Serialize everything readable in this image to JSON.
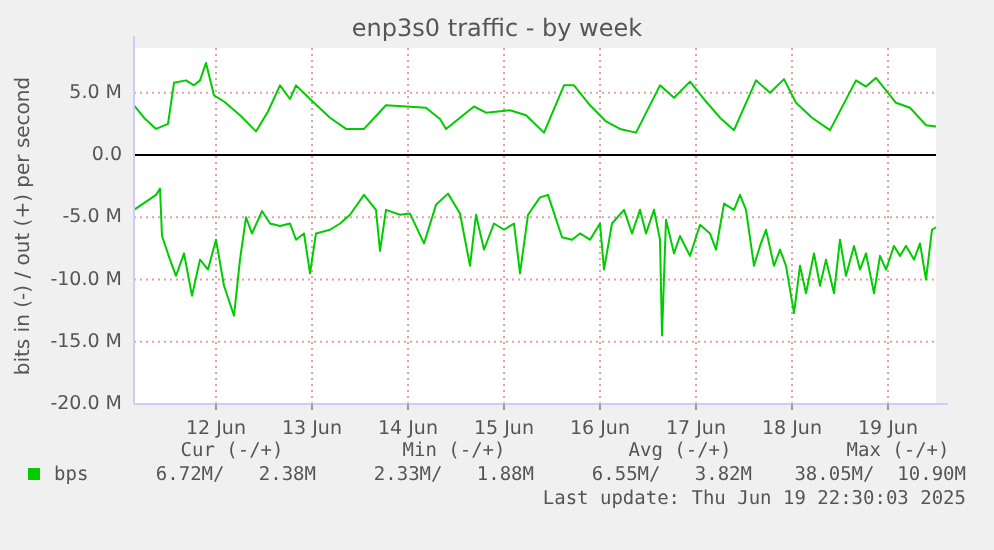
{
  "chart_data": {
    "type": "line",
    "title": "enp3s0 traffic - by week",
    "ylabel": "bits in (-) / out (+) per second",
    "xlim": [
      "2025-06-11T15:30",
      "2025-06-20T00:00"
    ],
    "xticks": [
      {
        "value": "2025-06-12T12:00",
        "label": "12 Jun"
      },
      {
        "value": "2025-06-13T12:00",
        "label": "13 Jun"
      },
      {
        "value": "2025-06-14T12:00",
        "label": "14 Jun"
      },
      {
        "value": "2025-06-15T12:00",
        "label": "15 Jun"
      },
      {
        "value": "2025-06-16T12:00",
        "label": "16 Jun"
      },
      {
        "value": "2025-06-17T12:00",
        "label": "17 Jun"
      },
      {
        "value": "2025-06-18T12:00",
        "label": "18 Jun"
      },
      {
        "value": "2025-06-19T12:00",
        "label": "19 Jun"
      }
    ],
    "ylim": [
      -20,
      8.6
    ],
    "yticks": [
      {
        "value": -20,
        "label": "-20.0 M"
      },
      {
        "value": -15,
        "label": "-15.0 M"
      },
      {
        "value": -10,
        "label": "-10.0 M"
      },
      {
        "value": -5,
        "label": "-5.0 M"
      },
      {
        "value": 0,
        "label": "0.0"
      },
      {
        "value": 5,
        "label": "5.0 M"
      }
    ],
    "grid": true,
    "legend": "bottom",
    "ref_lines": [
      {
        "axis": "y",
        "value": 0,
        "color": "#000000"
      }
    ],
    "annotations": [
      "Cur (-/+)",
      "Min (-/+)",
      "Avg (-/+)",
      "Max (-/+)",
      "6.72M/   2.38M",
      "2.33M/   1.88M",
      "6.55M/   3.82M",
      "38.05M/  10.90M",
      "Last update: Thu Jun 19 22:30:03 2025"
    ],
    "series": [
      {
        "name": "bps",
        "color": "#00cc00",
        "x": [
          "2025-06-11T15:30",
          "2025-06-11T18:00",
          "2025-06-11T21:00",
          "2025-06-12T00:00",
          "2025-06-12T01:30",
          "2025-06-12T04:30",
          "2025-06-12T06:30",
          "2025-06-12T08:00",
          "2025-06-12T09:30",
          "2025-06-12T11:30",
          "2025-06-12T14:00",
          "2025-06-12T18:00",
          "2025-06-12T22:00",
          "2025-06-13T01:00",
          "2025-06-13T04:00",
          "2025-06-13T06:30",
          "2025-06-13T08:00",
          "2025-06-13T11:30",
          "2025-06-13T16:30",
          "2025-06-13T20:30",
          "2025-06-14T01:00",
          "2025-06-14T06:30",
          "2025-06-14T11:30",
          "2025-06-14T16:30",
          "2025-06-14T20:00",
          "2025-06-14T21:30",
          "2025-06-15T04:30",
          "2025-06-15T07:30",
          "2025-06-15T13:30",
          "2025-06-15T17:30",
          "2025-06-15T22:00",
          "2025-06-16T03:00",
          "2025-06-16T05:30",
          "2025-06-16T09:30",
          "2025-06-16T13:30",
          "2025-06-16T17:00",
          "2025-06-16T21:00",
          "2025-06-17T03:00",
          "2025-06-17T06:30",
          "2025-06-17T10:30",
          "2025-06-17T14:30",
          "2025-06-17T18:00",
          "2025-06-17T21:30",
          "2025-06-18T03:00",
          "2025-06-18T06:30",
          "2025-06-18T10:00",
          "2025-06-18T13:00",
          "2025-06-18T17:00",
          "2025-06-18T21:30",
          "2025-06-19T04:00",
          "2025-06-19T06:30",
          "2025-06-19T09:00",
          "2025-06-19T14:00",
          "2025-06-19T17:30",
          "2025-06-19T21:30",
          "2025-06-20T00:00"
        ],
        "values": [
          4.0,
          3.0,
          2.1,
          2.5,
          5.8,
          6.0,
          5.6,
          6.0,
          7.4,
          4.8,
          4.3,
          3.2,
          1.9,
          3.5,
          5.6,
          4.5,
          5.6,
          4.5,
          3.0,
          2.1,
          2.1,
          4.0,
          3.9,
          3.8,
          2.9,
          2.1,
          3.9,
          3.4,
          3.6,
          3.2,
          1.8,
          5.6,
          5.6,
          4.0,
          2.7,
          2.1,
          1.8,
          5.6,
          4.6,
          5.9,
          4.3,
          3.0,
          2.0,
          6.0,
          5.0,
          6.1,
          4.2,
          3.0,
          2.0,
          6.0,
          5.5,
          6.2,
          4.2,
          3.8,
          2.4,
          2.3
        ]
      },
      {
        "color": "#00cc00",
        "x": [
          "2025-06-11T15:30",
          "2025-06-11T21:00",
          "2025-06-11T22:00",
          "2025-06-11T22:30",
          "2025-06-12T00:30",
          "2025-06-12T02:00",
          "2025-06-12T04:00",
          "2025-06-12T06:00",
          "2025-06-12T08:00",
          "2025-06-12T10:00",
          "2025-06-12T12:00",
          "2025-06-12T14:00",
          "2025-06-12T16:30",
          "2025-06-12T18:00",
          "2025-06-12T19:30",
          "2025-06-12T21:00",
          "2025-06-12T23:30",
          "2025-06-13T01:30",
          "2025-06-13T04:00",
          "2025-06-13T06:30",
          "2025-06-13T08:00",
          "2025-06-13T10:00",
          "2025-06-13T11:30",
          "2025-06-13T13:00",
          "2025-06-13T16:30",
          "2025-06-13T19:00",
          "2025-06-13T21:30",
          "2025-06-14T01:00",
          "2025-06-14T04:00",
          "2025-06-14T05:00",
          "2025-06-14T06:30",
          "2025-06-14T10:00",
          "2025-06-14T12:30",
          "2025-06-14T16:00",
          "2025-06-14T19:00",
          "2025-06-14T22:00",
          "2025-06-15T01:00",
          "2025-06-15T03:30",
          "2025-06-15T05:00",
          "2025-06-15T07:00",
          "2025-06-15T09:30",
          "2025-06-15T12:00",
          "2025-06-15T14:30",
          "2025-06-15T16:00",
          "2025-06-15T18:00",
          "2025-06-15T21:00",
          "2025-06-15T23:00",
          "2025-06-16T02:30",
          "2025-06-16T05:00",
          "2025-06-16T07:00",
          "2025-06-16T09:30",
          "2025-06-16T12:00",
          "2025-06-16T13:00",
          "2025-06-16T15:00",
          "2025-06-16T18:00",
          "2025-06-16T20:00",
          "2025-06-16T22:00",
          "2025-06-16T23:30",
          "2025-06-17T01:30",
          "2025-06-17T03:00",
          "2025-06-17T03:30",
          "2025-06-17T04:30",
          "2025-06-17T06:30",
          "2025-06-17T08:00",
          "2025-06-17T10:30",
          "2025-06-17T13:00",
          "2025-06-17T15:30",
          "2025-06-17T17:00",
          "2025-06-17T19:00",
          "2025-06-17T21:30",
          "2025-06-17T23:00",
          "2025-06-18T00:30",
          "2025-06-18T02:30",
          "2025-06-18T04:00",
          "2025-06-18T05:30",
          "2025-06-18T07:30",
          "2025-06-18T09:00",
          "2025-06-18T10:30",
          "2025-06-18T12:30",
          "2025-06-18T14:00",
          "2025-06-18T15:30",
          "2025-06-18T17:30",
          "2025-06-18T19:00",
          "2025-06-18T20:30",
          "2025-06-18T22:30",
          "2025-06-19T00:00",
          "2025-06-19T01:30",
          "2025-06-19T03:30",
          "2025-06-19T05:00",
          "2025-06-19T06:30",
          "2025-06-19T08:30",
          "2025-06-19T10:00",
          "2025-06-19T11:30",
          "2025-06-19T13:30",
          "2025-06-19T15:00",
          "2025-06-19T16:30",
          "2025-06-19T18:30",
          "2025-06-19T20:00",
          "2025-06-19T21:30",
          "2025-06-19T23:00",
          "2025-06-20T00:00"
        ],
        "values": [
          -4.4,
          -3.2,
          -2.7,
          -6.5,
          -8.4,
          -9.7,
          -7.9,
          -11.3,
          -8.4,
          -9.2,
          -6.8,
          -10.5,
          -12.9,
          -8.4,
          -5.0,
          -6.3,
          -4.5,
          -5.5,
          -5.7,
          -5.5,
          -6.8,
          -6.3,
          -9.5,
          -6.3,
          -6.0,
          -5.5,
          -4.8,
          -3.2,
          -4.4,
          -7.7,
          -4.4,
          -4.8,
          -4.7,
          -7.1,
          -4.0,
          -3.1,
          -4.7,
          -8.9,
          -4.8,
          -7.6,
          -5.5,
          -6.0,
          -5.5,
          -9.5,
          -4.8,
          -3.4,
          -3.2,
          -6.6,
          -6.8,
          -6.3,
          -6.8,
          -5.5,
          -9.2,
          -5.5,
          -4.4,
          -6.3,
          -4.4,
          -6.3,
          -4.4,
          -6.8,
          -14.5,
          -5.2,
          -7.9,
          -6.5,
          -8.1,
          -5.6,
          -6.3,
          -7.6,
          -3.9,
          -4.4,
          -3.2,
          -4.4,
          -8.9,
          -7.3,
          -6.0,
          -8.9,
          -7.6,
          -8.9,
          -12.7,
          -8.9,
          -11.1,
          -7.9,
          -10.5,
          -8.4,
          -11.1,
          -6.8,
          -9.7,
          -7.3,
          -9.2,
          -7.9,
          -11.1,
          -8.1,
          -9.2,
          -7.3,
          -8.1,
          -7.3,
          -8.4,
          -7.1,
          -10.0,
          -6.0,
          -5.8
        ]
      }
    ]
  }
}
